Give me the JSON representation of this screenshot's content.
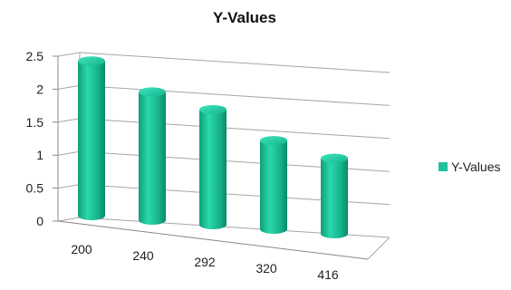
{
  "chart_data": {
    "type": "bar",
    "variant": "3d-cylinder",
    "title": "Y-Values",
    "categories": [
      "200",
      "240",
      "292",
      "320",
      "416"
    ],
    "series": [
      {
        "name": "Y-Values",
        "values": [
          2.4,
          2.0,
          1.8,
          1.4,
          1.2
        ],
        "color": "#1fc29a"
      }
    ],
    "ylim": [
      0,
      2.5
    ],
    "yticks": [
      "0",
      "0.5",
      "1",
      "1.5",
      "2",
      "2.5"
    ],
    "xlabel": "",
    "ylabel": "",
    "grid": true,
    "legend_position": "right"
  }
}
